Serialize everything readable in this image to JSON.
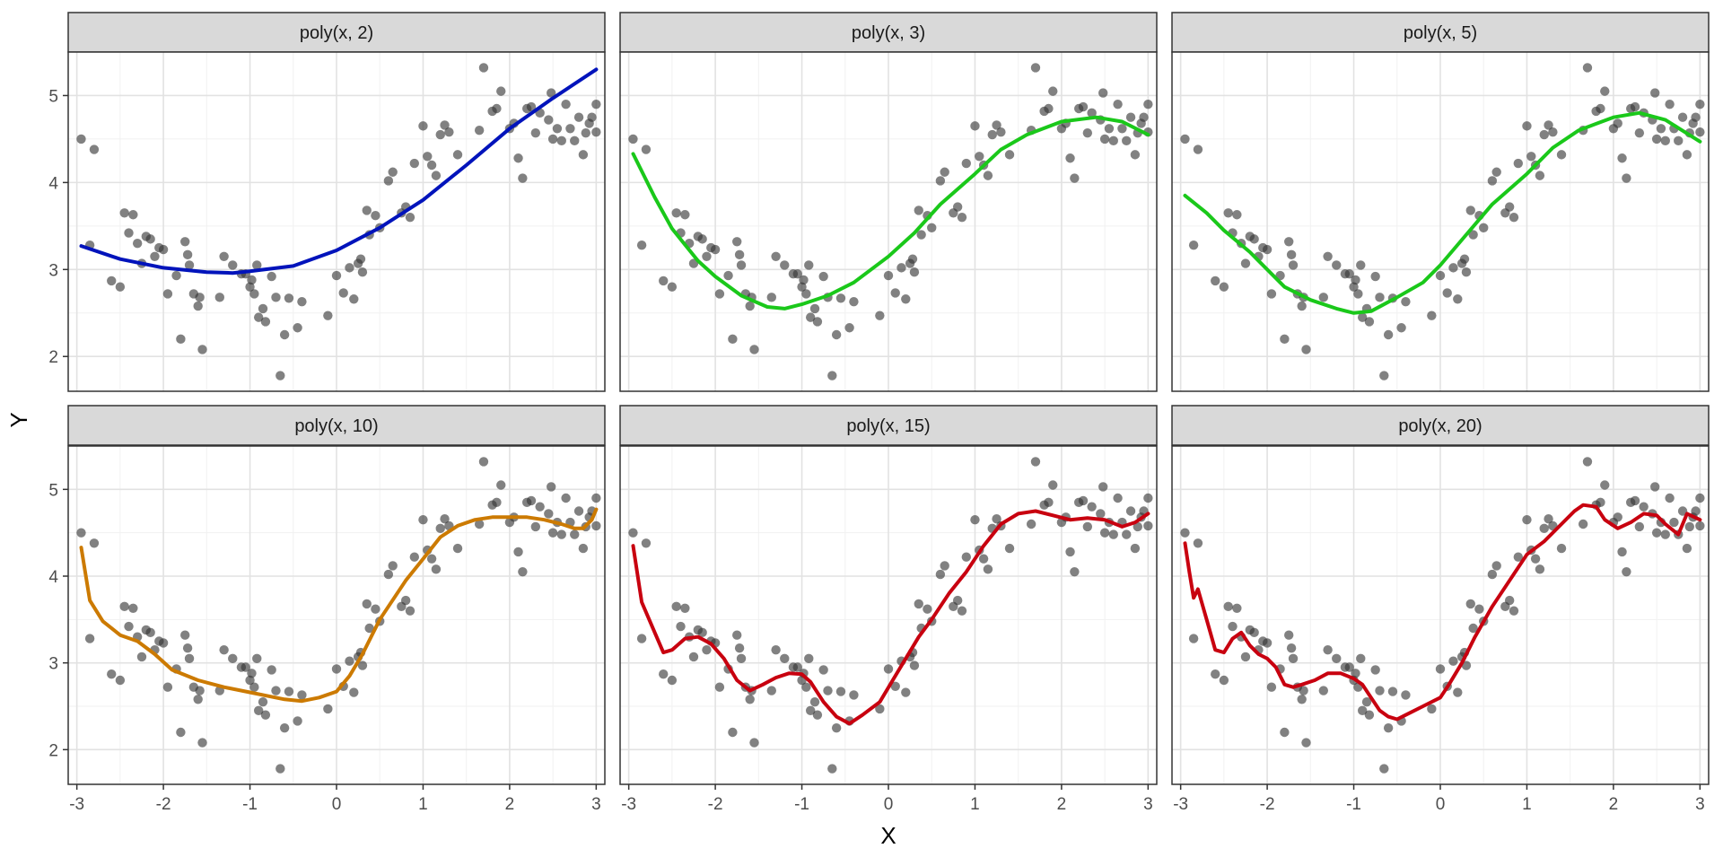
{
  "chart_data": {
    "type": "scatter",
    "xlabel": "X",
    "ylabel": "Y",
    "xlim": [
      -3.1,
      3.1
    ],
    "ylim": [
      1.6,
      5.5
    ],
    "x_ticks": [
      -3,
      -2,
      -1,
      0,
      1,
      2,
      3
    ],
    "x_tick_labels": [
      "-3",
      "-2",
      "-1",
      "0",
      "1",
      "2",
      "3"
    ],
    "y_ticks": [
      2,
      3,
      4,
      5
    ],
    "y_tick_labels": [
      "2",
      "3",
      "4",
      "5"
    ],
    "grid": true,
    "colors": {
      "points": "#333333",
      "panel_border": "#333333",
      "grid_major": "#e2e2e2",
      "grid_minor": "#f1f1f1",
      "strip_fill": "#d9d9d9"
    },
    "points": [
      [
        -2.95,
        4.5
      ],
      [
        -2.85,
        3.28
      ],
      [
        -2.8,
        4.38
      ],
      [
        -2.6,
        2.87
      ],
      [
        -2.5,
        2.8
      ],
      [
        -2.45,
        3.65
      ],
      [
        -2.4,
        3.42
      ],
      [
        -2.35,
        3.63
      ],
      [
        -2.3,
        3.3
      ],
      [
        -2.25,
        3.07
      ],
      [
        -2.2,
        3.38
      ],
      [
        -2.15,
        3.35
      ],
      [
        -2.1,
        3.15
      ],
      [
        -2.05,
        3.25
      ],
      [
        -2.0,
        3.23
      ],
      [
        -1.95,
        2.72
      ],
      [
        -1.85,
        2.93
      ],
      [
        -1.8,
        2.2
      ],
      [
        -1.75,
        3.32
      ],
      [
        -1.72,
        3.17
      ],
      [
        -1.7,
        3.05
      ],
      [
        -1.65,
        2.72
      ],
      [
        -1.6,
        2.58
      ],
      [
        -1.58,
        2.68
      ],
      [
        -1.55,
        2.08
      ],
      [
        -1.35,
        2.68
      ],
      [
        -1.3,
        3.15
      ],
      [
        -1.2,
        3.05
      ],
      [
        -1.1,
        2.95
      ],
      [
        -1.05,
        2.95
      ],
      [
        -1.0,
        2.8
      ],
      [
        -0.98,
        2.88
      ],
      [
        -0.95,
        2.72
      ],
      [
        -0.92,
        3.05
      ],
      [
        -0.9,
        2.45
      ],
      [
        -0.85,
        2.55
      ],
      [
        -0.82,
        2.4
      ],
      [
        -0.75,
        2.92
      ],
      [
        -0.7,
        2.68
      ],
      [
        -0.65,
        1.78
      ],
      [
        -0.6,
        2.25
      ],
      [
        -0.55,
        2.67
      ],
      [
        -0.45,
        2.33
      ],
      [
        -0.4,
        2.63
      ],
      [
        -0.1,
        2.47
      ],
      [
        0.0,
        2.93
      ],
      [
        0.08,
        2.73
      ],
      [
        0.15,
        3.02
      ],
      [
        0.2,
        2.66
      ],
      [
        0.25,
        3.07
      ],
      [
        0.28,
        3.12
      ],
      [
        0.3,
        2.97
      ],
      [
        0.35,
        3.68
      ],
      [
        0.38,
        3.4
      ],
      [
        0.45,
        3.62
      ],
      [
        0.5,
        3.48
      ],
      [
        0.6,
        4.02
      ],
      [
        0.65,
        4.12
      ],
      [
        0.75,
        3.65
      ],
      [
        0.8,
        3.72
      ],
      [
        0.85,
        3.6
      ],
      [
        0.9,
        4.22
      ],
      [
        1.0,
        4.65
      ],
      [
        1.05,
        4.3
      ],
      [
        1.1,
        4.2
      ],
      [
        1.15,
        4.08
      ],
      [
        1.2,
        4.55
      ],
      [
        1.25,
        4.66
      ],
      [
        1.3,
        4.58
      ],
      [
        1.4,
        4.32
      ],
      [
        1.65,
        4.6
      ],
      [
        1.7,
        5.32
      ],
      [
        1.8,
        4.82
      ],
      [
        1.85,
        4.85
      ],
      [
        1.9,
        5.05
      ],
      [
        2.0,
        4.62
      ],
      [
        2.05,
        4.68
      ],
      [
        2.1,
        4.28
      ],
      [
        2.15,
        4.05
      ],
      [
        2.2,
        4.85
      ],
      [
        2.25,
        4.87
      ],
      [
        2.3,
        4.57
      ],
      [
        2.35,
        4.8
      ],
      [
        2.45,
        4.72
      ],
      [
        2.48,
        5.03
      ],
      [
        2.5,
        4.5
      ],
      [
        2.55,
        4.62
      ],
      [
        2.6,
        4.48
      ],
      [
        2.65,
        4.9
      ],
      [
        2.7,
        4.62
      ],
      [
        2.75,
        4.48
      ],
      [
        2.8,
        4.75
      ],
      [
        2.85,
        4.32
      ],
      [
        2.88,
        4.57
      ],
      [
        2.92,
        4.68
      ],
      [
        2.95,
        4.75
      ],
      [
        3.0,
        4.9
      ],
      [
        3.0,
        4.58
      ]
    ],
    "facets": [
      {
        "label": "poly(x, 2)",
        "color": "#0013bb",
        "curve": [
          [
            -2.95,
            3.27
          ],
          [
            -2.5,
            3.12
          ],
          [
            -2.0,
            3.02
          ],
          [
            -1.5,
            2.97
          ],
          [
            -1.2,
            2.96
          ],
          [
            -1.0,
            2.98
          ],
          [
            -0.5,
            3.04
          ],
          [
            0.0,
            3.22
          ],
          [
            0.5,
            3.48
          ],
          [
            1.0,
            3.8
          ],
          [
            1.5,
            4.2
          ],
          [
            2.0,
            4.62
          ],
          [
            2.5,
            4.97
          ],
          [
            3.0,
            5.3
          ]
        ]
      },
      {
        "label": "poly(x, 3)",
        "color": "#1ac81a",
        "curve": [
          [
            -2.95,
            4.33
          ],
          [
            -2.7,
            3.83
          ],
          [
            -2.5,
            3.47
          ],
          [
            -2.2,
            3.1
          ],
          [
            -2.0,
            2.92
          ],
          [
            -1.7,
            2.7
          ],
          [
            -1.4,
            2.57
          ],
          [
            -1.2,
            2.55
          ],
          [
            -1.0,
            2.6
          ],
          [
            -0.7,
            2.7
          ],
          [
            -0.4,
            2.85
          ],
          [
            0.0,
            3.15
          ],
          [
            0.3,
            3.42
          ],
          [
            0.6,
            3.75
          ],
          [
            1.0,
            4.1
          ],
          [
            1.3,
            4.38
          ],
          [
            1.6,
            4.55
          ],
          [
            2.0,
            4.7
          ],
          [
            2.4,
            4.75
          ],
          [
            2.7,
            4.7
          ],
          [
            3.0,
            4.55
          ]
        ]
      },
      {
        "label": "poly(x, 5)",
        "color": "#1ac81a",
        "curve": [
          [
            -2.95,
            3.85
          ],
          [
            -2.7,
            3.65
          ],
          [
            -2.5,
            3.45
          ],
          [
            -2.2,
            3.2
          ],
          [
            -2.0,
            3.0
          ],
          [
            -1.8,
            2.8
          ],
          [
            -1.5,
            2.65
          ],
          [
            -1.2,
            2.55
          ],
          [
            -1.0,
            2.5
          ],
          [
            -0.8,
            2.52
          ],
          [
            -0.5,
            2.68
          ],
          [
            -0.2,
            2.85
          ],
          [
            0.0,
            3.05
          ],
          [
            0.3,
            3.4
          ],
          [
            0.6,
            3.75
          ],
          [
            1.0,
            4.1
          ],
          [
            1.3,
            4.4
          ],
          [
            1.6,
            4.6
          ],
          [
            2.0,
            4.75
          ],
          [
            2.3,
            4.8
          ],
          [
            2.6,
            4.72
          ],
          [
            3.0,
            4.47
          ]
        ]
      },
      {
        "label": "poly(x, 10)",
        "color": "#cc7a00",
        "curve": [
          [
            -2.95,
            4.33
          ],
          [
            -2.85,
            3.72
          ],
          [
            -2.7,
            3.48
          ],
          [
            -2.5,
            3.32
          ],
          [
            -2.3,
            3.25
          ],
          [
            -2.1,
            3.1
          ],
          [
            -1.9,
            2.92
          ],
          [
            -1.6,
            2.8
          ],
          [
            -1.3,
            2.72
          ],
          [
            -1.0,
            2.66
          ],
          [
            -0.8,
            2.62
          ],
          [
            -0.6,
            2.58
          ],
          [
            -0.4,
            2.56
          ],
          [
            -0.2,
            2.6
          ],
          [
            0.0,
            2.67
          ],
          [
            0.15,
            2.85
          ],
          [
            0.3,
            3.1
          ],
          [
            0.5,
            3.5
          ],
          [
            0.8,
            3.95
          ],
          [
            1.0,
            4.2
          ],
          [
            1.2,
            4.45
          ],
          [
            1.4,
            4.58
          ],
          [
            1.6,
            4.65
          ],
          [
            1.8,
            4.68
          ],
          [
            2.0,
            4.68
          ],
          [
            2.2,
            4.68
          ],
          [
            2.4,
            4.65
          ],
          [
            2.6,
            4.6
          ],
          [
            2.75,
            4.55
          ],
          [
            2.85,
            4.55
          ],
          [
            2.95,
            4.65
          ],
          [
            3.0,
            4.77
          ]
        ]
      },
      {
        "label": "poly(x, 15)",
        "color": "#c8000f",
        "curve": [
          [
            -2.95,
            4.35
          ],
          [
            -2.85,
            3.7
          ],
          [
            -2.7,
            3.35
          ],
          [
            -2.6,
            3.12
          ],
          [
            -2.5,
            3.15
          ],
          [
            -2.35,
            3.28
          ],
          [
            -2.2,
            3.3
          ],
          [
            -2.05,
            3.22
          ],
          [
            -1.9,
            3.05
          ],
          [
            -1.75,
            2.8
          ],
          [
            -1.6,
            2.68
          ],
          [
            -1.45,
            2.75
          ],
          [
            -1.3,
            2.83
          ],
          [
            -1.15,
            2.88
          ],
          [
            -1.0,
            2.87
          ],
          [
            -0.9,
            2.78
          ],
          [
            -0.75,
            2.55
          ],
          [
            -0.6,
            2.38
          ],
          [
            -0.45,
            2.3
          ],
          [
            -0.3,
            2.4
          ],
          [
            -0.1,
            2.55
          ],
          [
            0.05,
            2.8
          ],
          [
            0.2,
            3.05
          ],
          [
            0.35,
            3.3
          ],
          [
            0.5,
            3.5
          ],
          [
            0.7,
            3.8
          ],
          [
            0.9,
            4.05
          ],
          [
            1.1,
            4.35
          ],
          [
            1.3,
            4.6
          ],
          [
            1.5,
            4.72
          ],
          [
            1.7,
            4.75
          ],
          [
            1.9,
            4.7
          ],
          [
            2.1,
            4.65
          ],
          [
            2.3,
            4.67
          ],
          [
            2.5,
            4.65
          ],
          [
            2.7,
            4.57
          ],
          [
            2.85,
            4.62
          ],
          [
            3.0,
            4.72
          ]
        ]
      },
      {
        "label": "poly(x, 20)",
        "color": "#c8000f",
        "curve": [
          [
            -2.95,
            4.38
          ],
          [
            -2.9,
            4.05
          ],
          [
            -2.85,
            3.75
          ],
          [
            -2.8,
            3.85
          ],
          [
            -2.7,
            3.5
          ],
          [
            -2.6,
            3.15
          ],
          [
            -2.5,
            3.12
          ],
          [
            -2.4,
            3.28
          ],
          [
            -2.3,
            3.35
          ],
          [
            -2.2,
            3.2
          ],
          [
            -2.1,
            3.1
          ],
          [
            -2.0,
            3.05
          ],
          [
            -1.9,
            2.95
          ],
          [
            -1.8,
            2.75
          ],
          [
            -1.7,
            2.72
          ],
          [
            -1.6,
            2.75
          ],
          [
            -1.45,
            2.8
          ],
          [
            -1.3,
            2.88
          ],
          [
            -1.15,
            2.88
          ],
          [
            -1.0,
            2.82
          ],
          [
            -0.9,
            2.75
          ],
          [
            -0.8,
            2.6
          ],
          [
            -0.7,
            2.45
          ],
          [
            -0.6,
            2.38
          ],
          [
            -0.5,
            2.35
          ],
          [
            -0.4,
            2.4
          ],
          [
            -0.2,
            2.5
          ],
          [
            0.0,
            2.6
          ],
          [
            0.1,
            2.75
          ],
          [
            0.25,
            3.0
          ],
          [
            0.4,
            3.3
          ],
          [
            0.6,
            3.65
          ],
          [
            0.8,
            3.95
          ],
          [
            1.0,
            4.25
          ],
          [
            1.2,
            4.4
          ],
          [
            1.4,
            4.6
          ],
          [
            1.55,
            4.75
          ],
          [
            1.65,
            4.82
          ],
          [
            1.8,
            4.8
          ],
          [
            1.9,
            4.65
          ],
          [
            2.05,
            4.55
          ],
          [
            2.2,
            4.62
          ],
          [
            2.35,
            4.72
          ],
          [
            2.5,
            4.7
          ],
          [
            2.6,
            4.6
          ],
          [
            2.75,
            4.48
          ],
          [
            2.85,
            4.72
          ],
          [
            3.0,
            4.65
          ]
        ]
      }
    ]
  }
}
